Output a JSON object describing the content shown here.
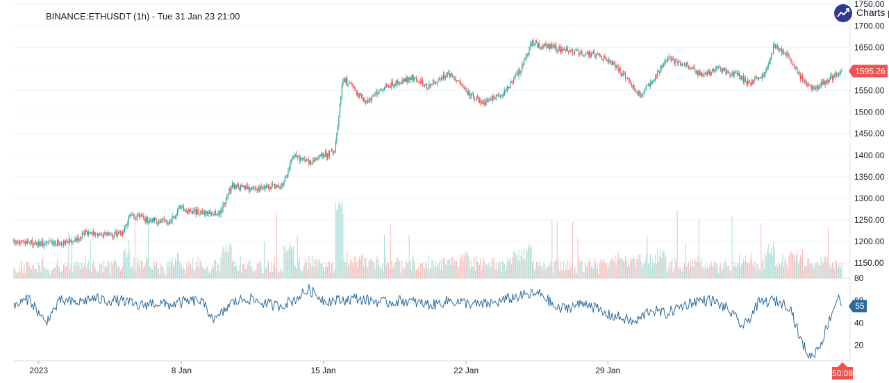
{
  "header": {
    "symbol_title": "BINANCE:ETHUSDT (1h) - Tue 31 Jan 23 21:00"
  },
  "brand": {
    "label": "Charts p",
    "icon": "trend-chart-icon",
    "color": "#2e3b8f"
  },
  "colors": {
    "up": "#26a69a",
    "down": "#ef5350",
    "up_vol": "#a7dcd4",
    "down_vol": "#f8b9b7",
    "osc": "#2a6a9c",
    "grid": "#e0e3eb"
  },
  "chart_data": [
    {
      "type": "candlestick",
      "title": "",
      "price_axis": {
        "ticks": [
          1150,
          1200,
          1250,
          1300,
          1350,
          1400,
          1450,
          1500,
          1550,
          1600,
          1650,
          1700,
          1750
        ],
        "labels": [
          "1150.00",
          "1200.00",
          "1250.00",
          "1300.00",
          "1350.00",
          "1400.00",
          "1450.00",
          "1500.00",
          "1550.00",
          "1600.00",
          "1650.00",
          "1700.00",
          "1750.00"
        ],
        "range": [
          1115,
          1760
        ]
      },
      "last_price": 1595.26,
      "last_price_label": "1595.26",
      "x_axis": {
        "ticks": [
          "2023",
          "8 Jan",
          "15 Jan",
          "22 Jan",
          "29 Jan"
        ]
      },
      "x_range": [
        "2023-01-01 00:00",
        "2023-01-31 21:00"
      ],
      "waypoints": [
        [
          0,
          1198
        ],
        [
          30,
          1195
        ],
        [
          60,
          1203
        ],
        [
          70,
          1222
        ],
        [
          95,
          1215
        ],
        [
          105,
          1220
        ],
        [
          112,
          1262
        ],
        [
          130,
          1250
        ],
        [
          150,
          1245
        ],
        [
          160,
          1275
        ],
        [
          185,
          1265
        ],
        [
          200,
          1268
        ],
        [
          210,
          1330
        ],
        [
          225,
          1322
        ],
        [
          260,
          1328
        ],
        [
          270,
          1400
        ],
        [
          285,
          1385
        ],
        [
          310,
          1410
        ],
        [
          318,
          1580
        ],
        [
          340,
          1525
        ],
        [
          360,
          1560
        ],
        [
          385,
          1580
        ],
        [
          400,
          1560
        ],
        [
          420,
          1590
        ],
        [
          430,
          1575
        ],
        [
          440,
          1540
        ],
        [
          455,
          1520
        ],
        [
          475,
          1548
        ],
        [
          490,
          1600
        ],
        [
          500,
          1660
        ],
        [
          520,
          1650
        ],
        [
          540,
          1640
        ],
        [
          565,
          1630
        ],
        [
          580,
          1610
        ],
        [
          595,
          1570
        ],
        [
          605,
          1540
        ],
        [
          620,
          1580
        ],
        [
          630,
          1625
        ],
        [
          650,
          1610
        ],
        [
          665,
          1585
        ],
        [
          680,
          1600
        ],
        [
          700,
          1585
        ],
        [
          710,
          1565
        ],
        [
          725,
          1590
        ],
        [
          735,
          1655
        ],
        [
          748,
          1630
        ],
        [
          762,
          1575
        ],
        [
          772,
          1555
        ],
        [
          785,
          1570
        ],
        [
          800,
          1600
        ]
      ],
      "volume": {
        "note": "volume histogram overlaid at bottom of price pane"
      }
    },
    {
      "type": "line",
      "title": "",
      "y_axis": {
        "ticks": [
          20,
          40,
          60,
          80
        ],
        "labels": [
          "20",
          "40",
          "60",
          "80"
        ],
        "range": [
          6,
          80
        ]
      },
      "last_value": 55,
      "last_value_label": "55",
      "x_range": [
        "2023-01-01 00:00",
        "2023-01-31 21:00"
      ],
      "waypoints": [
        [
          0,
          55
        ],
        [
          15,
          62
        ],
        [
          30,
          40
        ],
        [
          45,
          60
        ],
        [
          60,
          58
        ],
        [
          75,
          62
        ],
        [
          90,
          60
        ],
        [
          105,
          60
        ],
        [
          120,
          55
        ],
        [
          135,
          58
        ],
        [
          150,
          56
        ],
        [
          165,
          59
        ],
        [
          180,
          60
        ],
        [
          195,
          42
        ],
        [
          210,
          58
        ],
        [
          225,
          62
        ],
        [
          240,
          58
        ],
        [
          255,
          55
        ],
        [
          270,
          60
        ],
        [
          285,
          70
        ],
        [
          300,
          60
        ],
        [
          315,
          60
        ],
        [
          330,
          62
        ],
        [
          345,
          60
        ],
        [
          360,
          58
        ],
        [
          375,
          60
        ],
        [
          390,
          58
        ],
        [
          405,
          56
        ],
        [
          420,
          60
        ],
        [
          435,
          58
        ],
        [
          450,
          56
        ],
        [
          465,
          58
        ],
        [
          480,
          62
        ],
        [
          495,
          65
        ],
        [
          510,
          66
        ],
        [
          525,
          52
        ],
        [
          540,
          55
        ],
        [
          555,
          58
        ],
        [
          570,
          48
        ],
        [
          585,
          45
        ],
        [
          600,
          40
        ],
        [
          615,
          52
        ],
        [
          630,
          48
        ],
        [
          645,
          55
        ],
        [
          660,
          60
        ],
        [
          675,
          60
        ],
        [
          690,
          52
        ],
        [
          705,
          36
        ],
        [
          720,
          58
        ],
        [
          735,
          60
        ],
        [
          750,
          55
        ],
        [
          760,
          25
        ],
        [
          770,
          8
        ],
        [
          780,
          22
        ],
        [
          790,
          48
        ],
        [
          797,
          65
        ],
        [
          800,
          55
        ]
      ]
    }
  ],
  "footer": {
    "countdown": "50:08"
  }
}
